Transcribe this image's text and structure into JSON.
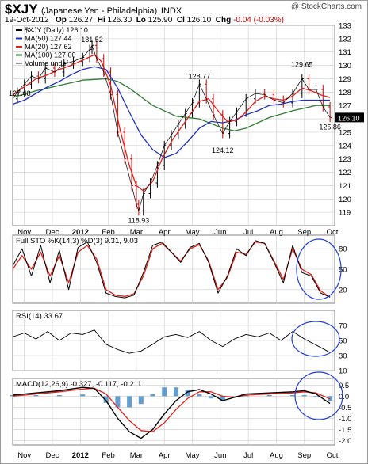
{
  "header": {
    "symbol": "$XJY",
    "name": "(Japanese Yen - Philadelphia)",
    "exchange": "INDX",
    "watermark": "@ StockCharts.com",
    "date": "19-Oct-2012",
    "op_label": "Op",
    "op": "126.27",
    "hi_label": "Hi",
    "hi": "126.30",
    "lo_label": "Lo",
    "lo": "125.90",
    "cl_label": "Cl",
    "cl": "126.10",
    "chg_label": "Chg",
    "chg": "-0.04 (-0.03%)"
  },
  "legend": {
    "price": "$XJY (Daily) 126.10",
    "ma50": "MA(50) 127.44",
    "ma20": "MA(20) 127.62",
    "ma100": "MA(100) 127.00",
    "volume": "Volume undef",
    "last_tag": "126.10"
  },
  "colors": {
    "price": "#000000",
    "ma50": "#1f2fbf",
    "ma20": "#e0201b",
    "ma100": "#2e7d32",
    "stoK": "#000000",
    "stoD": "#e0201b",
    "macd": "#000000",
    "signal": "#e0201b",
    "hist": "#3d86c6",
    "circle": "#1f3fd8",
    "grid": "#cccccc"
  },
  "chart_data": [
    {
      "type": "line",
      "panel": "price",
      "title": "$XJY (Daily) 126.10",
      "x_ticks": [
        "Nov",
        "Dec",
        "2012",
        "Feb",
        "Mar",
        "Apr",
        "May",
        "Jun",
        "Jul",
        "Aug",
        "Sep",
        "Oct"
      ],
      "ylim": [
        118,
        133
      ],
      "y_ticks": [
        119,
        120,
        121,
        122,
        123,
        124,
        125,
        126,
        127,
        128,
        129,
        130,
        131,
        132,
        133
      ],
      "annotations": [
        {
          "label": "127.48",
          "x": 0.3,
          "y": 127.48
        },
        {
          "label": "131.52",
          "x": 3.4,
          "y": 131.52
        },
        {
          "label": "118.93",
          "x": 5.4,
          "y": 118.93
        },
        {
          "label": "128.77",
          "x": 8.0,
          "y": 128.77
        },
        {
          "label": "124.12",
          "x": 9.0,
          "y": 124.12
        },
        {
          "label": "129.65",
          "x": 12.4,
          "y": 129.65
        },
        {
          "label": "125.86",
          "x": 13.6,
          "y": 125.86
        }
      ],
      "series": [
        {
          "name": "$XJY (Daily) 126.10",
          "x": [
            0,
            0.2,
            0.5,
            0.8,
            1.1,
            1.4,
            1.8,
            2.2,
            2.6,
            3.0,
            3.3,
            3.4,
            3.6,
            3.9,
            4.2,
            4.5,
            4.8,
            5.1,
            5.3,
            5.4,
            5.6,
            5.9,
            6.2,
            6.5,
            6.8,
            7.1,
            7.4,
            7.7,
            8.0,
            8.3,
            8.6,
            9.0,
            9.3,
            9.6,
            10.0,
            10.4,
            10.8,
            11.2,
            11.6,
            12.0,
            12.4,
            12.7,
            13.0,
            13.3,
            13.6
          ],
          "y": [
            127.5,
            128.0,
            128.6,
            129.2,
            129.0,
            129.8,
            129.5,
            130.1,
            130.3,
            130.6,
            131.2,
            131.5,
            130.5,
            129.5,
            127.8,
            125.0,
            123.0,
            121.0,
            119.6,
            119.1,
            120.4,
            121.2,
            122.5,
            124.0,
            124.8,
            125.6,
            126.4,
            127.2,
            128.6,
            127.5,
            126.3,
            124.9,
            125.8,
            126.5,
            127.5,
            127.9,
            127.8,
            127.4,
            127.2,
            127.9,
            129.0,
            128.2,
            128.2,
            126.9,
            126.1
          ]
        },
        {
          "name": "MA(20) 127.62",
          "x": [
            0,
            0.5,
            1,
            1.5,
            2,
            2.5,
            3,
            3.5,
            3.8,
            4.2,
            4.6,
            5,
            5.3,
            5.6,
            6,
            6.4,
            6.8,
            7.2,
            7.6,
            8,
            8.4,
            8.8,
            9.2,
            9.6,
            10,
            10.4,
            10.8,
            11.2,
            11.6,
            12,
            12.4,
            12.8,
            13.2,
            13.6
          ],
          "y": [
            127.8,
            128.4,
            129.0,
            129.3,
            129.7,
            130.0,
            130.4,
            130.8,
            130.3,
            128.5,
            125.2,
            122.5,
            121.0,
            120.6,
            121.3,
            123.0,
            124.3,
            125.3,
            126.3,
            127.3,
            127.5,
            126.6,
            125.8,
            125.9,
            126.5,
            127.3,
            127.7,
            127.5,
            127.4,
            127.7,
            128.3,
            128.1,
            127.8,
            127.6
          ]
        },
        {
          "name": "MA(50) 127.44",
          "x": [
            0,
            0.5,
            1,
            1.5,
            2,
            2.5,
            3,
            3.5,
            4,
            4.5,
            5,
            5.5,
            6,
            6.5,
            7,
            7.5,
            8,
            8.5,
            9,
            9.5,
            10,
            10.5,
            11,
            11.5,
            12,
            12.5,
            13,
            13.6
          ],
          "y": [
            127.1,
            127.4,
            127.9,
            128.4,
            128.8,
            129.3,
            129.7,
            129.9,
            129.7,
            128.3,
            126.5,
            124.8,
            123.7,
            123.1,
            123.4,
            124.3,
            125.3,
            125.8,
            125.7,
            125.9,
            126.3,
            126.6,
            127.0,
            127.1,
            127.3,
            127.4,
            127.4,
            127.4
          ]
        },
        {
          "name": "MA(100) 127.00",
          "x": [
            0,
            1,
            2,
            3,
            4,
            4.5,
            5,
            6,
            7,
            8,
            9,
            9.5,
            10,
            11,
            12,
            13,
            13.6
          ],
          "y": [
            127.6,
            128.1,
            128.5,
            128.9,
            129.0,
            128.8,
            128.3,
            127.0,
            126.2,
            126.0,
            125.3,
            125.1,
            125.3,
            126.1,
            126.6,
            127.0,
            127.0
          ]
        }
      ]
    },
    {
      "type": "line",
      "panel": "stochastic",
      "title": "Full STO %K(14,3) %D(3) 9.31, 9.03",
      "ylim": [
        0,
        100
      ],
      "y_ticks": [
        20,
        50,
        80
      ],
      "series": [
        {
          "name": "%K(14,3)",
          "x": [
            0,
            0.4,
            0.8,
            1.2,
            1.6,
            2,
            2.4,
            2.8,
            3.2,
            3.6,
            4,
            4.4,
            4.8,
            5.2,
            5.6,
            6,
            6.4,
            6.8,
            7.2,
            7.6,
            8,
            8.4,
            8.8,
            9.2,
            9.6,
            10,
            10.4,
            10.8,
            11.2,
            11.6,
            12,
            12.4,
            12.8,
            13.2,
            13.6
          ],
          "y": [
            55,
            80,
            40,
            85,
            30,
            78,
            20,
            82,
            90,
            60,
            15,
            10,
            8,
            12,
            45,
            85,
            90,
            75,
            60,
            82,
            88,
            60,
            15,
            40,
            80,
            70,
            92,
            88,
            60,
            30,
            85,
            45,
            40,
            15,
            9
          ]
        },
        {
          "name": "%D(3)",
          "x": [
            0,
            0.4,
            0.8,
            1.2,
            1.6,
            2,
            2.4,
            2.8,
            3.2,
            3.6,
            4,
            4.4,
            4.8,
            5.2,
            5.6,
            6,
            6.4,
            6.8,
            7.2,
            7.6,
            8,
            8.4,
            8.8,
            9.2,
            9.6,
            10,
            10.4,
            10.8,
            11.2,
            11.6,
            12,
            12.4,
            12.8,
            13.2,
            13.6
          ],
          "y": [
            50,
            70,
            50,
            75,
            40,
            70,
            30,
            75,
            85,
            65,
            20,
            12,
            10,
            14,
            40,
            80,
            88,
            75,
            62,
            80,
            86,
            62,
            20,
            38,
            75,
            72,
            90,
            88,
            62,
            35,
            80,
            50,
            42,
            18,
            9
          ]
        }
      ]
    },
    {
      "type": "line",
      "panel": "rsi",
      "title": "RSI(14) 33.67",
      "ylim": [
        10,
        90
      ],
      "y_ticks": [
        10,
        30,
        50,
        70
      ],
      "series": [
        {
          "name": "RSI(14)",
          "x": [
            0,
            0.5,
            1,
            1.5,
            2,
            2.5,
            3,
            3.5,
            4,
            4.5,
            5,
            5.5,
            6,
            6.5,
            7,
            7.5,
            8,
            8.5,
            9,
            9.5,
            10,
            10.5,
            11,
            11.5,
            12,
            12.5,
            13,
            13.6
          ],
          "y": [
            55,
            60,
            52,
            62,
            50,
            60,
            58,
            64,
            45,
            38,
            33,
            36,
            45,
            55,
            58,
            54,
            62,
            50,
            42,
            52,
            58,
            55,
            60,
            50,
            62,
            52,
            44,
            34
          ]
        }
      ]
    },
    {
      "type": "line",
      "panel": "macd",
      "title": "MACD(12,26,9) -0.327, -0.117, -0.211",
      "ylim": [
        -2.2,
        0.8
      ],
      "y_ticks": [
        -2.0,
        -1.5,
        -1.0,
        -0.5,
        0.0,
        0.5
      ],
      "series": [
        {
          "name": "MACD(12,26,9)",
          "x": [
            0,
            1,
            2,
            3,
            3.5,
            4,
            4.5,
            5,
            5.5,
            6,
            6.5,
            7,
            7.5,
            8,
            8.5,
            9,
            9.5,
            10,
            11,
            12,
            12.5,
            13,
            13.6
          ],
          "y": [
            0.05,
            0.15,
            0.25,
            0.4,
            0.35,
            -0.2,
            -1.0,
            -1.6,
            -1.9,
            -1.5,
            -0.8,
            -0.2,
            0.2,
            0.3,
            0.1,
            -0.2,
            -0.05,
            0.1,
            0.15,
            0.2,
            0.25,
            0.1,
            -0.33
          ]
        },
        {
          "name": "Signal",
          "x": [
            0,
            1,
            2,
            3,
            3.5,
            4,
            4.5,
            5,
            5.5,
            6,
            6.5,
            7,
            7.5,
            8,
            8.5,
            9,
            9.5,
            10,
            11,
            12,
            12.5,
            13,
            13.6
          ],
          "y": [
            0.0,
            0.1,
            0.2,
            0.32,
            0.36,
            0.1,
            -0.5,
            -1.1,
            -1.55,
            -1.6,
            -1.2,
            -0.6,
            -0.1,
            0.2,
            0.2,
            0.0,
            -0.05,
            0.05,
            0.1,
            0.15,
            0.2,
            0.15,
            -0.12
          ]
        },
        {
          "name": "Histogram",
          "x": [
            0,
            1,
            2,
            3,
            3.5,
            4,
            4.5,
            5,
            5.5,
            6,
            6.5,
            7,
            7.5,
            8,
            8.5,
            9,
            9.5,
            10,
            11,
            12,
            12.5,
            13,
            13.6
          ],
          "y": [
            0.05,
            0.05,
            0.05,
            0.08,
            -0.01,
            -0.3,
            -0.5,
            -0.5,
            -0.35,
            0.1,
            0.4,
            0.4,
            0.3,
            0.1,
            -0.1,
            -0.2,
            0.0,
            0.05,
            0.05,
            0.05,
            0.05,
            -0.05,
            -0.21
          ]
        }
      ]
    }
  ]
}
